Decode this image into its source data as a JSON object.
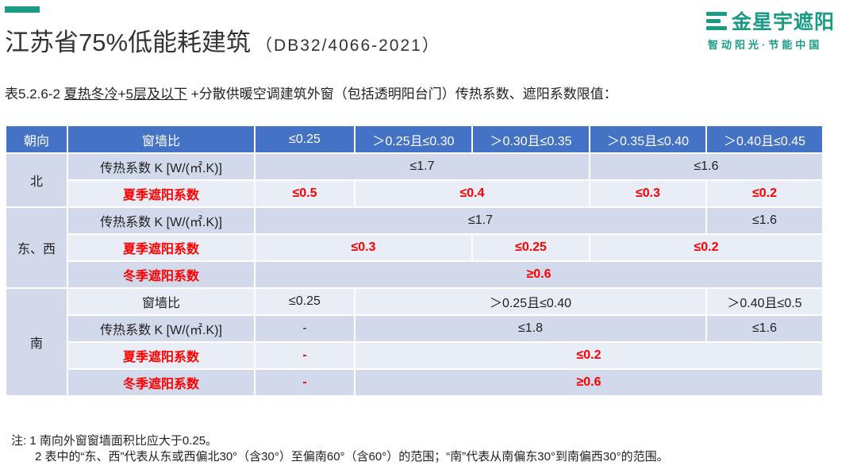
{
  "title": {
    "main": "江苏省75%低能耗建筑",
    "code": "（DB32/4066-2021）"
  },
  "logo": {
    "name": "金星宇遮阳",
    "slogan": "智动阳光·节能中国"
  },
  "subtitle": {
    "prefix": "表5.2.6-2 ",
    "climate": "夏热冬冷",
    "plus1": "+",
    "floors": "5层及以下",
    "rest": " +分散供暖空调建筑外窗（包括透明阳台门）传热系数、遮阳系数限值："
  },
  "table": {
    "headers": [
      "朝向",
      "窗墙比",
      "≤0.25",
      "＞0.25且≤0.30",
      "＞0.30且≤0.35",
      "＞0.35且≤0.40",
      "＞0.40且≤0.45"
    ],
    "north": {
      "dir": "北",
      "k_label": "传热系数 K [W/(㎡.K)]",
      "k1": "≤1.7",
      "k2": "≤1.6",
      "sc_label": "夏季遮阳系数",
      "sc1": "≤0.5",
      "sc2": "≤0.4",
      "sc3": "≤0.3",
      "sc4": "≤0.2"
    },
    "eastwest": {
      "dir": "东、西",
      "k_label": "传热系数 K [W/(㎡.K)]",
      "k1": "≤1.7",
      "k2": "≤1.6",
      "sc_label": "夏季遮阳系数",
      "sc1": "≤0.3",
      "sc2": "≤0.25",
      "sc3": "≤0.2",
      "wc_label": "冬季遮阳系数",
      "wc1": "≥0.6"
    },
    "south": {
      "dir": "南",
      "ratio_label": "窗墙比",
      "r1": "≤0.25",
      "r2": "＞0.25且≤0.40",
      "r3": "＞0.40且≤0.5",
      "k_label": "传热系数 K [W/(㎡.K)]",
      "k1": "-",
      "k2": "≤1.8",
      "k3": "≤1.6",
      "sc_label": "夏季遮阳系数",
      "sc1": "-",
      "sc2": "≤0.2",
      "wc_label": "冬季遮阳系数",
      "wc1": "-",
      "wc2": "≥0.6"
    }
  },
  "notes": {
    "line1": "注: 1 南向外窗窗墙面积比应大于0.25。",
    "line2": "2 表中的“东、西”代表从东或西偏北30°（含30°）至偏南60°（含60°）的范围；“南”代表从南偏东30°到南偏西30°的范围。"
  },
  "colors": {
    "header": "#4472c4",
    "row_dark": "#d1d9eb",
    "row_light": "#e9edf5",
    "red": "#ff0000",
    "brand": "#1a9b86"
  }
}
